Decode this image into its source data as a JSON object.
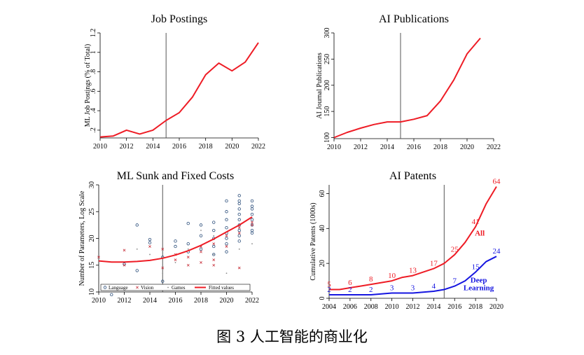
{
  "caption": "图 3 人工智能的商业化",
  "colors": {
    "red": "#ee1c25",
    "blue": "#1515e0",
    "axis": "#000000",
    "vline": "#555555",
    "scatter_blue": "#2a4d7a",
    "scatter_red": "#c8323c",
    "scatter_gray": "#8a8a8a"
  },
  "chart_data": [
    {
      "type": "line",
      "title": "Job Postings",
      "xlabel": "",
      "ylabel": "ML Job Postings  (% of Total)",
      "xlim": [
        2010,
        2022
      ],
      "ylim": [
        0.12,
        1.2
      ],
      "x_ticks": [
        2010,
        2012,
        2014,
        2016,
        2018,
        2020,
        2022
      ],
      "y_ticks": [
        0.2,
        0.4,
        0.6,
        0.8,
        1.0,
        1.2
      ],
      "y_tick_labels": [
        ".2",
        ".4",
        ".6",
        ".8",
        "1",
        "1.2"
      ],
      "vline": 2015,
      "series": [
        {
          "color": "#ee1c25",
          "x": [
            2010,
            2011,
            2012,
            2013,
            2014,
            2015,
            2016,
            2017,
            2018,
            2019,
            2020,
            2021,
            2022
          ],
          "y": [
            0.13,
            0.14,
            0.2,
            0.16,
            0.2,
            0.3,
            0.38,
            0.54,
            0.77,
            0.89,
            0.81,
            0.9,
            1.1
          ]
        }
      ]
    },
    {
      "type": "line",
      "title": "AI Publications",
      "xlabel": "",
      "ylabel": "AI Journal Publications",
      "xlim": [
        2010,
        2022
      ],
      "ylim": [
        98,
        300
      ],
      "x_ticks": [
        2010,
        2012,
        2014,
        2016,
        2018,
        2020,
        2022
      ],
      "y_ticks": [
        100,
        150,
        200,
        250,
        300
      ],
      "y_tick_labels": [
        "100",
        "150",
        "200",
        "250",
        "300"
      ],
      "vline": 2015,
      "series": [
        {
          "color": "#ee1c25",
          "x": [
            2010,
            2011,
            2012,
            2013,
            2014,
            2015,
            2016,
            2017,
            2018,
            2019,
            2020,
            2021
          ],
          "y": [
            100,
            110,
            118,
            125,
            130,
            130,
            135,
            142,
            170,
            210,
            260,
            290
          ]
        }
      ]
    },
    {
      "type": "scatter",
      "title": "ML Sunk and Fixed Costs",
      "xlabel": "",
      "ylabel": "Number of Parameters, Log Scale",
      "xlim": [
        2010,
        2022
      ],
      "ylim": [
        10,
        30
      ],
      "x_ticks": [
        2010,
        2012,
        2014,
        2016,
        2018,
        2020,
        2022
      ],
      "y_ticks": [
        10,
        15,
        20,
        25,
        30
      ],
      "y_tick_labels": [
        "10",
        "15",
        "20",
        "25",
        "30"
      ],
      "vline": 2015,
      "legend": {
        "position": "bottom",
        "entries": [
          "Language",
          "Vision",
          "Games",
          "Fitted values"
        ]
      },
      "series": [
        {
          "name": "Language",
          "marker": "circle",
          "color": "#2a4d7a",
          "points": [
            [
              2011,
              9.5
            ],
            [
              2012,
              15.2
            ],
            [
              2013,
              22.5
            ],
            [
              2013,
              14.0
            ],
            [
              2014,
              19.8
            ],
            [
              2014,
              19.2
            ],
            [
              2015,
              12.0
            ],
            [
              2015,
              16.5
            ],
            [
              2016,
              18.5
            ],
            [
              2016,
              19.5
            ],
            [
              2017,
              22.8
            ],
            [
              2017,
              19.0
            ],
            [
              2017,
              17.5
            ],
            [
              2018,
              22.5
            ],
            [
              2018,
              20.5
            ],
            [
              2018,
              18.0
            ],
            [
              2019,
              23.0
            ],
            [
              2019,
              21.5
            ],
            [
              2019,
              20.0
            ],
            [
              2019,
              18.5
            ],
            [
              2019,
              17.0
            ],
            [
              2020,
              27.0
            ],
            [
              2020,
              25.0
            ],
            [
              2020,
              23.5
            ],
            [
              2020,
              22.0
            ],
            [
              2020,
              21.0
            ],
            [
              2020,
              20.0
            ],
            [
              2020,
              19.0
            ],
            [
              2020,
              17.5
            ],
            [
              2021,
              28.0
            ],
            [
              2021,
              27.0
            ],
            [
              2021,
              26.5
            ],
            [
              2021,
              25.5
            ],
            [
              2021,
              24.5
            ],
            [
              2021,
              23.5
            ],
            [
              2021,
              22.5
            ],
            [
              2021,
              21.5
            ],
            [
              2021,
              20.5
            ],
            [
              2021,
              19.5
            ],
            [
              2022,
              27.0
            ],
            [
              2022,
              26.0
            ],
            [
              2022,
              25.5
            ],
            [
              2022,
              24.5
            ],
            [
              2022,
              23.5
            ],
            [
              2022,
              22.5
            ],
            [
              2022,
              21.5
            ],
            [
              2022,
              21.0
            ]
          ]
        },
        {
          "name": "Vision",
          "marker": "x",
          "color": "#c8323c",
          "points": [
            [
              2010,
              16.5
            ],
            [
              2012,
              17.8
            ],
            [
              2012,
              15.0
            ],
            [
              2014,
              18.5
            ],
            [
              2015,
              18.0
            ],
            [
              2015,
              14.5
            ],
            [
              2016,
              17.0
            ],
            [
              2016,
              16.0
            ],
            [
              2017,
              15.0
            ],
            [
              2017,
              16.5
            ],
            [
              2018,
              18.5
            ],
            [
              2018,
              15.5
            ],
            [
              2018,
              17.5
            ],
            [
              2019,
              19.0
            ],
            [
              2019,
              16.0
            ],
            [
              2019,
              15.0
            ],
            [
              2020,
              20.5
            ],
            [
              2020,
              18.5
            ],
            [
              2021,
              22.0
            ],
            [
              2021,
              21.0
            ],
            [
              2021,
              14.5
            ],
            [
              2022,
              23.0
            ],
            [
              2022,
              22.5
            ]
          ]
        },
        {
          "name": "Games",
          "marker": "dot",
          "color": "#8a8a8a",
          "points": [
            [
              2013,
              18.0
            ],
            [
              2014,
              17.0
            ],
            [
              2015,
              13.5
            ],
            [
              2016,
              15.5
            ],
            [
              2017,
              18.0
            ],
            [
              2018,
              21.5
            ],
            [
              2019,
              20.5
            ],
            [
              2019,
              17.0
            ],
            [
              2020,
              13.5
            ],
            [
              2021,
              18.0
            ],
            [
              2022,
              19.0
            ]
          ]
        },
        {
          "name": "Fitted values",
          "type": "line",
          "color": "#ee1c25",
          "x": [
            2010,
            2011,
            2012,
            2013,
            2014,
            2015,
            2016,
            2017,
            2018,
            2019,
            2020,
            2021,
            2022
          ],
          "y": [
            15.8,
            15.6,
            15.6,
            15.7,
            15.9,
            16.3,
            16.9,
            17.7,
            18.7,
            19.9,
            21.2,
            22.5,
            24.0
          ]
        }
      ]
    },
    {
      "type": "line",
      "title": "AI Patents",
      "xlabel": "",
      "ylabel": "Cumulative Patents (1000s)",
      "xlim": [
        2004,
        2020
      ],
      "ylim": [
        0,
        65
      ],
      "x_ticks": [
        2004,
        2006,
        2008,
        2010,
        2012,
        2014,
        2016,
        2018,
        2020
      ],
      "y_ticks": [
        0,
        20,
        40,
        60
      ],
      "y_tick_labels": [
        "0",
        "20",
        "40",
        "60"
      ],
      "vline": 2015,
      "series": [
        {
          "name": "All",
          "color": "#ee1c25",
          "x": [
            2004,
            2005,
            2006,
            2007,
            2008,
            2009,
            2010,
            2011,
            2012,
            2013,
            2014,
            2015,
            2016,
            2017,
            2018,
            2019,
            2020
          ],
          "y": [
            5,
            5,
            6,
            7,
            8,
            9,
            10,
            12,
            13,
            15,
            17,
            20,
            25,
            32,
            41,
            54,
            64
          ],
          "labels": [
            [
              2004,
              5,
              "5"
            ],
            [
              2006,
              6,
              "6"
            ],
            [
              2008,
              8,
              "8"
            ],
            [
              2010,
              10,
              "10"
            ],
            [
              2012,
              13,
              "13"
            ],
            [
              2014,
              17,
              "17"
            ],
            [
              2016,
              25,
              "25"
            ],
            [
              2018,
              41,
              "41"
            ],
            [
              2020,
              64,
              "64"
            ]
          ]
        },
        {
          "name": "Deep Learning",
          "color": "#1515e0",
          "x": [
            2004,
            2005,
            2006,
            2007,
            2008,
            2009,
            2010,
            2011,
            2012,
            2013,
            2014,
            2015,
            2016,
            2017,
            2018,
            2019,
            2020
          ],
          "y": [
            2,
            2,
            2,
            2,
            2,
            2.5,
            3,
            3,
            3,
            3.5,
            4,
            5,
            7,
            10,
            15,
            21,
            24
          ],
          "labels": [
            [
              2004,
              2,
              "2"
            ],
            [
              2006,
              2,
              "2"
            ],
            [
              2008,
              2,
              "2"
            ],
            [
              2010,
              3,
              "3"
            ],
            [
              2012,
              3,
              "3"
            ],
            [
              2014,
              4,
              "4"
            ],
            [
              2016,
              7,
              "7"
            ],
            [
              2018,
              15,
              "15"
            ],
            [
              2020,
              24,
              "24"
            ]
          ]
        }
      ],
      "annotations": [
        {
          "series": "All",
          "text": "All",
          "x": 2018.4,
          "y": 36
        },
        {
          "series": "Deep Learning",
          "text_lines": [
            "Deep",
            "Learning"
          ],
          "x": 2018.3,
          "y": 9
        }
      ]
    }
  ]
}
